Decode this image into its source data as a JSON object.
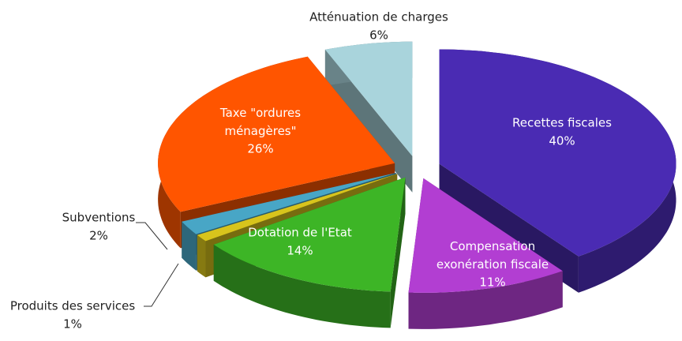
{
  "chart_data": {
    "type": "pie3d",
    "categories": [
      "Recettes fiscales",
      "Compensation exonération fiscale",
      "Dotation de l'Etat",
      "Produits des services",
      "Subventions",
      "Taxe \"ordures ménagères\"",
      "Atténuation de charges"
    ],
    "values": [
      40,
      11,
      14,
      1,
      2,
      26,
      6
    ],
    "value_labels": [
      "40%",
      "11%",
      "14%",
      "1%",
      "2%",
      "26%",
      "6%"
    ],
    "colors": [
      "#4a2bb3",
      "#b23ed2",
      "#3db526",
      "#d8c41c",
      "#48a6c6",
      "#ff5500",
      "#a9d4dc"
    ]
  }
}
